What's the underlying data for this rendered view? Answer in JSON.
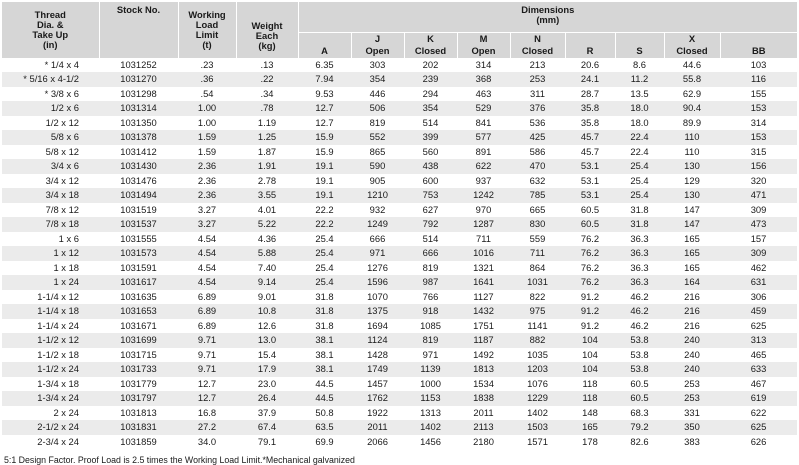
{
  "headers": {
    "thread": [
      "Thread",
      "Dia. &",
      "Take Up",
      "(in)"
    ],
    "stock": "Stock No.",
    "wll": [
      "Working",
      "Load",
      "Limit",
      "(t)"
    ],
    "weight": [
      "Weight",
      "Each",
      "(kg)"
    ],
    "dimensions": [
      "Dimensions",
      "(mm)"
    ],
    "dims": [
      {
        "top": "",
        "bottom": "A"
      },
      {
        "top": "J",
        "bottom": "Open"
      },
      {
        "top": "K",
        "bottom": "Closed"
      },
      {
        "top": "M",
        "bottom": "Open"
      },
      {
        "top": "N",
        "bottom": "Closed"
      },
      {
        "top": "",
        "bottom": "R"
      },
      {
        "top": "",
        "bottom": "S"
      },
      {
        "top": "X",
        "bottom": "Closed"
      },
      {
        "top": "",
        "bottom": "BB"
      }
    ]
  },
  "rows": [
    [
      "* 1/4 x 4",
      "1031252",
      ".23",
      ".13",
      "6.35",
      "303",
      "202",
      "314",
      "213",
      "20.6",
      "8.6",
      "44.6",
      "103"
    ],
    [
      "* 5/16 x 4-1/2",
      "1031270",
      ".36",
      ".22",
      "7.94",
      "354",
      "239",
      "368",
      "253",
      "24.1",
      "11.2",
      "55.8",
      "116"
    ],
    [
      "* 3/8 x 6",
      "1031298",
      ".54",
      ".34",
      "9.53",
      "446",
      "294",
      "463",
      "311",
      "28.7",
      "13.5",
      "62.9",
      "155"
    ],
    [
      "1/2 x 6",
      "1031314",
      "1.00",
      ".78",
      "12.7",
      "506",
      "354",
      "529",
      "376",
      "35.8",
      "18.0",
      "90.4",
      "153"
    ],
    [
      "1/2 x 12",
      "1031350",
      "1.00",
      "1.19",
      "12.7",
      "819",
      "514",
      "841",
      "536",
      "35.8",
      "18.0",
      "89.9",
      "314"
    ],
    [
      "5/8 x 6",
      "1031378",
      "1.59",
      "1.25",
      "15.9",
      "552",
      "399",
      "577",
      "425",
      "45.7",
      "22.4",
      "110",
      "153"
    ],
    [
      "5/8 x 12",
      "1031412",
      "1.59",
      "1.87",
      "15.9",
      "865",
      "560",
      "891",
      "586",
      "45.7",
      "22.4",
      "110",
      "315"
    ],
    [
      "3/4 x 6",
      "1031430",
      "2.36",
      "1.91",
      "19.1",
      "590",
      "438",
      "622",
      "470",
      "53.1",
      "25.4",
      "130",
      "156"
    ],
    [
      "3/4 x 12",
      "1031476",
      "2.36",
      "2.78",
      "19.1",
      "905",
      "600",
      "937",
      "632",
      "53.1",
      "25.4",
      "129",
      "320"
    ],
    [
      "3/4 x 18",
      "1031494",
      "2.36",
      "3.55",
      "19.1",
      "1210",
      "753",
      "1242",
      "785",
      "53.1",
      "25.4",
      "130",
      "471"
    ],
    [
      "7/8 x 12",
      "1031519",
      "3.27",
      "4.01",
      "22.2",
      "932",
      "627",
      "970",
      "665",
      "60.5",
      "31.8",
      "147",
      "309"
    ],
    [
      "7/8 x 18",
      "1031537",
      "3.27",
      "5.22",
      "22.2",
      "1249",
      "792",
      "1287",
      "830",
      "60.5",
      "31.8",
      "147",
      "473"
    ],
    [
      "1 x 6",
      "1031555",
      "4.54",
      "4.36",
      "25.4",
      "666",
      "514",
      "711",
      "559",
      "76.2",
      "36.3",
      "165",
      "157"
    ],
    [
      "1 x 12",
      "1031573",
      "4.54",
      "5.88",
      "25.4",
      "971",
      "666",
      "1016",
      "711",
      "76.2",
      "36.3",
      "165",
      "309"
    ],
    [
      "1 x 18",
      "1031591",
      "4.54",
      "7.40",
      "25.4",
      "1276",
      "819",
      "1321",
      "864",
      "76.2",
      "36.3",
      "165",
      "462"
    ],
    [
      "1 x 24",
      "1031617",
      "4.54",
      "9.14",
      "25.4",
      "1596",
      "987",
      "1641",
      "1031",
      "76.2",
      "36.3",
      "164",
      "631"
    ],
    [
      "1-1/4 x 12",
      "1031635",
      "6.89",
      "9.01",
      "31.8",
      "1070",
      "766",
      "1127",
      "822",
      "91.2",
      "46.2",
      "216",
      "306"
    ],
    [
      "1-1/4 x 18",
      "1031653",
      "6.89",
      "10.8",
      "31.8",
      "1375",
      "918",
      "1432",
      "975",
      "91.2",
      "46.2",
      "216",
      "459"
    ],
    [
      "1-1/4 x 24",
      "1031671",
      "6.89",
      "12.6",
      "31.8",
      "1694",
      "1085",
      "1751",
      "1141",
      "91.2",
      "46.2",
      "216",
      "625"
    ],
    [
      "1-1/2 x 12",
      "1031699",
      "9.71",
      "13.0",
      "38.1",
      "1124",
      "819",
      "1187",
      "882",
      "104",
      "53.8",
      "240",
      "313"
    ],
    [
      "1-1/2 x 18",
      "1031715",
      "9.71",
      "15.4",
      "38.1",
      "1428",
      "971",
      "1492",
      "1035",
      "104",
      "53.8",
      "240",
      "465"
    ],
    [
      "1-1/2 x 24",
      "1031733",
      "9.71",
      "17.9",
      "38.1",
      "1749",
      "1139",
      "1813",
      "1203",
      "104",
      "53.8",
      "240",
      "633"
    ],
    [
      "1-3/4 x 18",
      "1031779",
      "12.7",
      "23.0",
      "44.5",
      "1457",
      "1000",
      "1534",
      "1076",
      "118",
      "60.5",
      "253",
      "467"
    ],
    [
      "1-3/4 x 24",
      "1031797",
      "12.7",
      "26.4",
      "44.5",
      "1762",
      "1153",
      "1838",
      "1229",
      "118",
      "60.5",
      "253",
      "619"
    ],
    [
      "2 x 24",
      "1031813",
      "16.8",
      "37.9",
      "50.8",
      "1922",
      "1313",
      "2011",
      "1402",
      "148",
      "68.3",
      "331",
      "622"
    ],
    [
      "2-1/2 x 24",
      "1031831",
      "27.2",
      "67.4",
      "63.5",
      "2011",
      "1402",
      "2113",
      "1503",
      "165",
      "79.2",
      "350",
      "625"
    ],
    [
      "2-3/4 x 24",
      "1031859",
      "34.0",
      "79.1",
      "69.9",
      "2066",
      "1456",
      "2180",
      "1571",
      "178",
      "82.6",
      "383",
      "626"
    ]
  ],
  "footnote": "5:1 Design Factor.  Proof Load is 2.5 times the Working Load Limit.*Mechanical galvanized"
}
